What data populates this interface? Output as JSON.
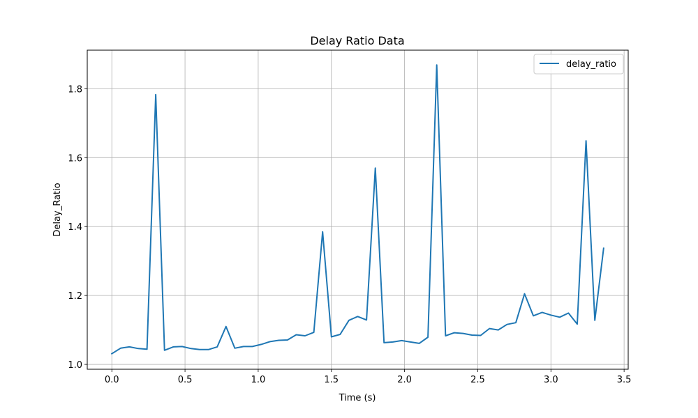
{
  "chart_data": {
    "type": "line",
    "title": "Delay Ratio Data",
    "xlabel": "Time (s)",
    "ylabel": "Delay_Ratio",
    "xlim": [
      -0.168,
      3.528
    ],
    "ylim": [
      0.986,
      1.912
    ],
    "xticks": [
      0.0,
      0.5,
      1.0,
      1.5,
      2.0,
      2.5,
      3.0,
      3.5
    ],
    "xtick_labels": [
      "0.0",
      "0.5",
      "1.0",
      "1.5",
      "2.0",
      "2.5",
      "3.0",
      "3.5"
    ],
    "yticks": [
      1.0,
      1.2,
      1.4,
      1.6,
      1.8
    ],
    "ytick_labels": [
      "1.0",
      "1.2",
      "1.4",
      "1.6",
      "1.8"
    ],
    "grid": true,
    "legend_position": "top-right",
    "series": [
      {
        "name": "delay_ratio",
        "color": "#1f77b4",
        "x": [
          0.0,
          0.06,
          0.12,
          0.18,
          0.24,
          0.3,
          0.36,
          0.42,
          0.48,
          0.54,
          0.6,
          0.66,
          0.72,
          0.78,
          0.84,
          0.9,
          0.96,
          1.02,
          1.08,
          1.14,
          1.2,
          1.26,
          1.32,
          1.38,
          1.44,
          1.5,
          1.56,
          1.62,
          1.68,
          1.74,
          1.8,
          1.86,
          1.92,
          1.98,
          2.04,
          2.1,
          2.16,
          2.22,
          2.28,
          2.34,
          2.4,
          2.46,
          2.52,
          2.58,
          2.64,
          2.7,
          2.76,
          2.82,
          2.88,
          2.94,
          3.0,
          3.06,
          3.12,
          3.18,
          3.24,
          3.3,
          3.36
        ],
        "values": [
          1.031,
          1.047,
          1.051,
          1.046,
          1.044,
          1.783,
          1.041,
          1.051,
          1.052,
          1.046,
          1.043,
          1.043,
          1.051,
          1.11,
          1.047,
          1.052,
          1.052,
          1.058,
          1.066,
          1.07,
          1.071,
          1.086,
          1.083,
          1.093,
          1.385,
          1.08,
          1.087,
          1.128,
          1.139,
          1.129,
          1.57,
          1.063,
          1.065,
          1.069,
          1.065,
          1.061,
          1.079,
          1.869,
          1.083,
          1.092,
          1.09,
          1.085,
          1.084,
          1.104,
          1.1,
          1.116,
          1.121,
          1.205,
          1.141,
          1.151,
          1.143,
          1.137,
          1.149,
          1.117,
          1.649,
          1.128,
          1.337
        ]
      }
    ]
  }
}
